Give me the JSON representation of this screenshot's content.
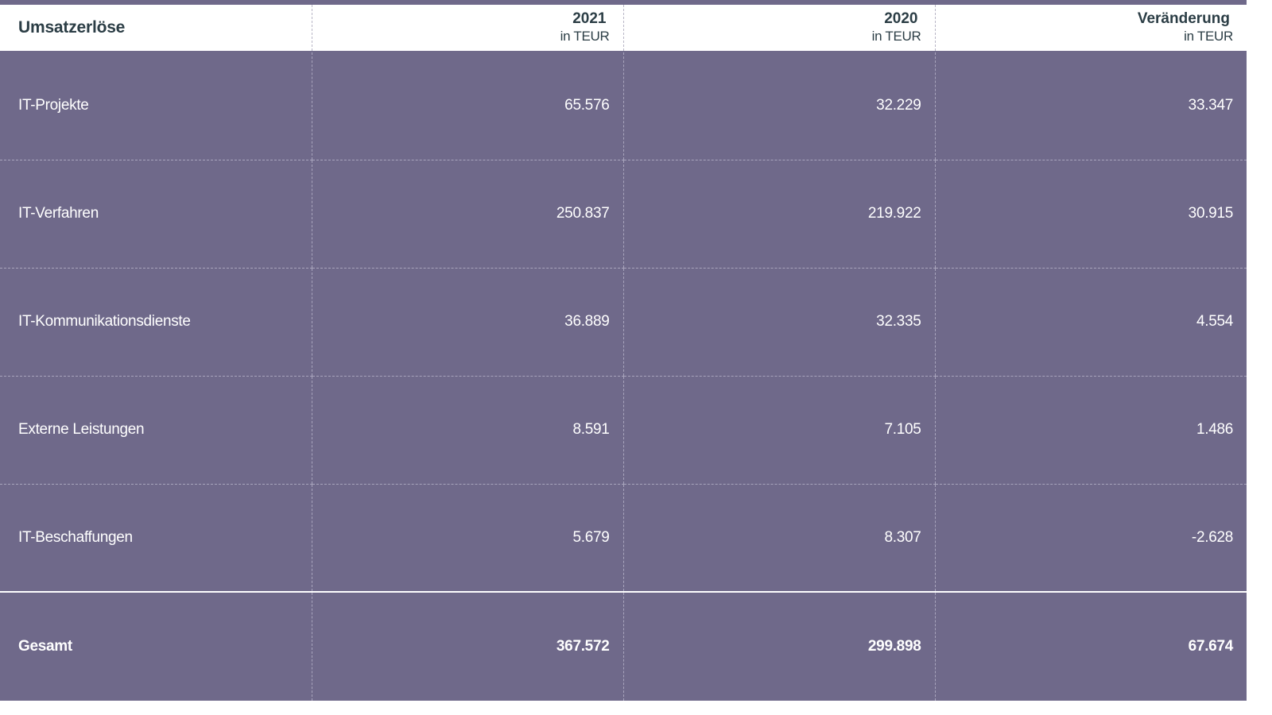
{
  "table": {
    "header": {
      "label": "Umsatzerlöse",
      "columns": [
        {
          "year": "2021",
          "unit": "in TEUR"
        },
        {
          "year": "2020",
          "unit": "in TEUR"
        },
        {
          "year": "Veränderung",
          "unit": "in TEUR"
        }
      ]
    },
    "rows": [
      {
        "label": "IT-Projekte",
        "v2021": "65.576",
        "v2020": "32.229",
        "change": "33.347"
      },
      {
        "label": "IT-Verfahren",
        "v2021": "250.837",
        "v2020": "219.922",
        "change": "30.915"
      },
      {
        "label": "IT-Kommunikationsdienste",
        "v2021": "36.889",
        "v2020": "32.335",
        "change": "4.554"
      },
      {
        "label": "Externe Leistungen",
        "v2021": "8.591",
        "v2020": "7.105",
        "change": "1.486"
      },
      {
        "label": "IT-Beschaffungen",
        "v2021": "5.679",
        "v2020": "8.307",
        "change": "-2.628"
      }
    ],
    "total": {
      "label": "Gesamt",
      "v2021": "367.572",
      "v2020": "299.898",
      "change": "67.674"
    }
  },
  "colors": {
    "row_background": "#6f698a",
    "header_text": "#2b3d45",
    "body_text": "#ffffff",
    "header_background": "#ffffff"
  }
}
